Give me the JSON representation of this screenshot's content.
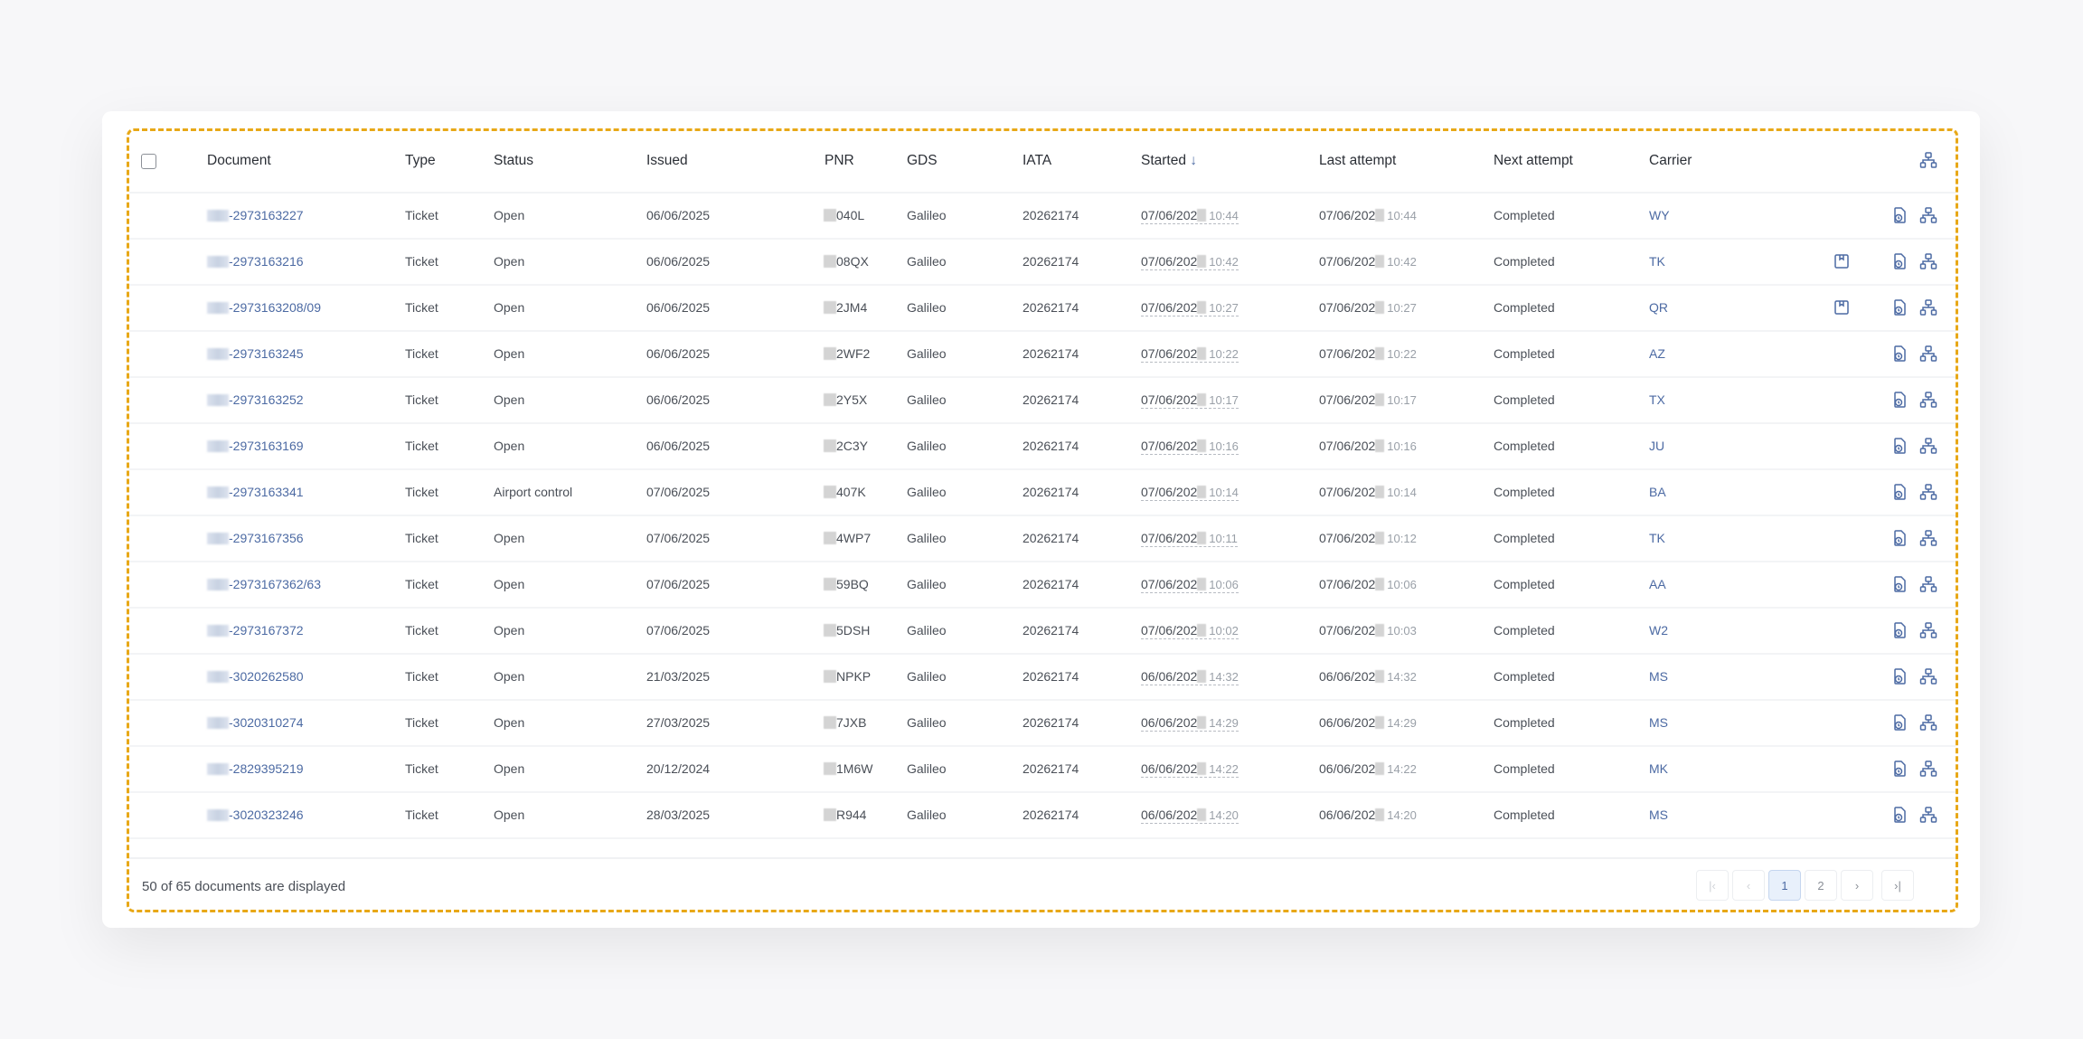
{
  "columns": {
    "document": "Document",
    "type": "Type",
    "status": "Status",
    "issued": "Issued",
    "pnr": "PNR",
    "gds": "GDS",
    "iata": "IATA",
    "started": "Started",
    "last_attempt": "Last attempt",
    "next_attempt": "Next attempt",
    "carrier": "Carrier"
  },
  "sort": {
    "column": "Started",
    "direction": "descending",
    "icon": "arrow-down-icon"
  },
  "accent": "#4c6aa3",
  "rows": [
    {
      "document": "-2973163227",
      "type": "Ticket",
      "status": "Open",
      "issued": "06/06/2025",
      "pnr": "040L",
      "gds": "Galileo",
      "iata": "20262174",
      "started_date": "07/06/202",
      "started_time": "10:44",
      "last_date": "07/06/202",
      "last_time": "10:44",
      "next": "Completed",
      "carrier": "WY",
      "save": false
    },
    {
      "document": "-2973163216",
      "type": "Ticket",
      "status": "Open",
      "issued": "06/06/2025",
      "pnr": "08QX",
      "gds": "Galileo",
      "iata": "20262174",
      "started_date": "07/06/202",
      "started_time": "10:42",
      "last_date": "07/06/202",
      "last_time": "10:42",
      "next": "Completed",
      "carrier": "TK",
      "save": true
    },
    {
      "document": "-2973163208/09",
      "type": "Ticket",
      "status": "Open",
      "issued": "06/06/2025",
      "pnr": "2JM4",
      "gds": "Galileo",
      "iata": "20262174",
      "started_date": "07/06/202",
      "started_time": "10:27",
      "last_date": "07/06/202",
      "last_time": "10:27",
      "next": "Completed",
      "carrier": "QR",
      "save": true
    },
    {
      "document": "-2973163245",
      "type": "Ticket",
      "status": "Open",
      "issued": "06/06/2025",
      "pnr": "2WF2",
      "gds": "Galileo",
      "iata": "20262174",
      "started_date": "07/06/202",
      "started_time": "10:22",
      "last_date": "07/06/202",
      "last_time": "10:22",
      "next": "Completed",
      "carrier": "AZ",
      "save": false
    },
    {
      "document": "-2973163252",
      "type": "Ticket",
      "status": "Open",
      "issued": "06/06/2025",
      "pnr": "2Y5X",
      "gds": "Galileo",
      "iata": "20262174",
      "started_date": "07/06/202",
      "started_time": "10:17",
      "last_date": "07/06/202",
      "last_time": "10:17",
      "next": "Completed",
      "carrier": "TX",
      "save": false
    },
    {
      "document": "-2973163169",
      "type": "Ticket",
      "status": "Open",
      "issued": "06/06/2025",
      "pnr": "2C3Y",
      "gds": "Galileo",
      "iata": "20262174",
      "started_date": "07/06/202",
      "started_time": "10:16",
      "last_date": "07/06/202",
      "last_time": "10:16",
      "next": "Completed",
      "carrier": "JU",
      "save": false
    },
    {
      "document": "-2973163341",
      "type": "Ticket",
      "status": "Airport control",
      "issued": "07/06/2025",
      "pnr": "407K",
      "gds": "Galileo",
      "iata": "20262174",
      "started_date": "07/06/202",
      "started_time": "10:14",
      "last_date": "07/06/202",
      "last_time": "10:14",
      "next": "Completed",
      "carrier": "BA",
      "save": false
    },
    {
      "document": "-2973167356",
      "type": "Ticket",
      "status": "Open",
      "issued": "07/06/2025",
      "pnr": "4WP7",
      "gds": "Galileo",
      "iata": "20262174",
      "started_date": "07/06/202",
      "started_time": "10:11",
      "last_date": "07/06/202",
      "last_time": "10:12",
      "next": "Completed",
      "carrier": "TK",
      "save": false
    },
    {
      "document": "-2973167362/63",
      "type": "Ticket",
      "status": "Open",
      "issued": "07/06/2025",
      "pnr": "59BQ",
      "gds": "Galileo",
      "iata": "20262174",
      "started_date": "07/06/202",
      "started_time": "10:06",
      "last_date": "07/06/202",
      "last_time": "10:06",
      "next": "Completed",
      "carrier": "AA",
      "save": false
    },
    {
      "document": "-2973167372",
      "type": "Ticket",
      "status": "Open",
      "issued": "07/06/2025",
      "pnr": "5DSH",
      "gds": "Galileo",
      "iata": "20262174",
      "started_date": "07/06/202",
      "started_time": "10:02",
      "last_date": "07/06/202",
      "last_time": "10:03",
      "next": "Completed",
      "carrier": "W2",
      "save": false
    },
    {
      "document": "-3020262580",
      "type": "Ticket",
      "status": "Open",
      "issued": "21/03/2025",
      "pnr": "NPKP",
      "gds": "Galileo",
      "iata": "20262174",
      "started_date": "06/06/202",
      "started_time": "14:32",
      "last_date": "06/06/202",
      "last_time": "14:32",
      "next": "Completed",
      "carrier": "MS",
      "save": false
    },
    {
      "document": "-3020310274",
      "type": "Ticket",
      "status": "Open",
      "issued": "27/03/2025",
      "pnr": "7JXB",
      "gds": "Galileo",
      "iata": "20262174",
      "started_date": "06/06/202",
      "started_time": "14:29",
      "last_date": "06/06/202",
      "last_time": "14:29",
      "next": "Completed",
      "carrier": "MS",
      "save": false
    },
    {
      "document": "-2829395219",
      "type": "Ticket",
      "status": "Open",
      "issued": "20/12/2024",
      "pnr": "1M6W",
      "gds": "Galileo",
      "iata": "20262174",
      "started_date": "06/06/202",
      "started_time": "14:22",
      "last_date": "06/06/202",
      "last_time": "14:22",
      "next": "Completed",
      "carrier": "MK",
      "save": false
    },
    {
      "document": "-3020323246",
      "type": "Ticket",
      "status": "Open",
      "issued": "28/03/2025",
      "pnr": "R944",
      "gds": "Galileo",
      "iata": "20262174",
      "started_date": "06/06/202",
      "started_time": "14:20",
      "last_date": "06/06/202",
      "last_time": "14:20",
      "next": "Completed",
      "carrier": "MS",
      "save": false
    }
  ],
  "footer": {
    "summary": "50 of 65 documents are displayed"
  },
  "pagination": {
    "current": 1,
    "pages": [
      "1",
      "2"
    ]
  }
}
